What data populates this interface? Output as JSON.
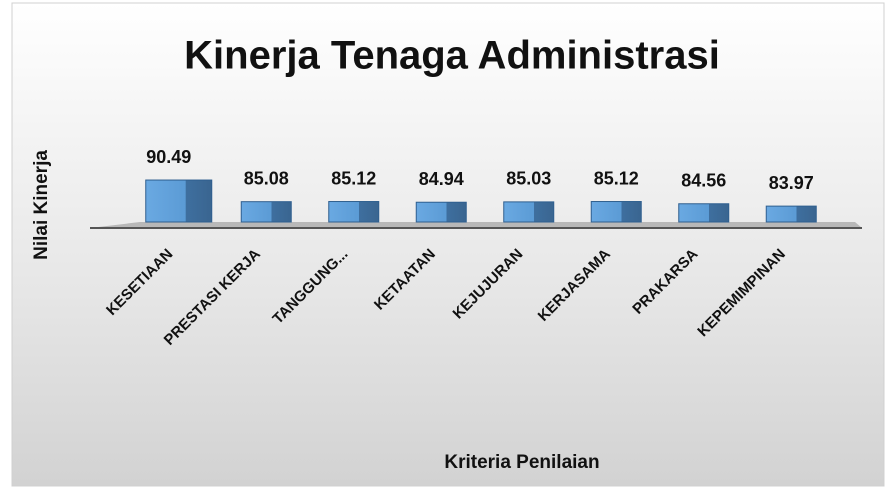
{
  "chart_data": {
    "type": "bar",
    "title": "Kinerja Tenaga Administrasi",
    "x_label": "Kriteria Penilaian",
    "y_label": "Nilai Kinerja",
    "categories": [
      "KESETIAAN",
      "PRESTASI KERJA",
      "TANGGUNG...",
      "KETAATAN",
      "KEJUJURAN",
      "KERJASAMA",
      "PRAKARSA",
      "KEPEMIMPINAN"
    ],
    "values": [
      90.49,
      85.08,
      85.12,
      84.94,
      85.03,
      85.12,
      84.56,
      83.97
    ],
    "color": "#5b9bd5",
    "ylim": [
      80,
      92
    ]
  }
}
